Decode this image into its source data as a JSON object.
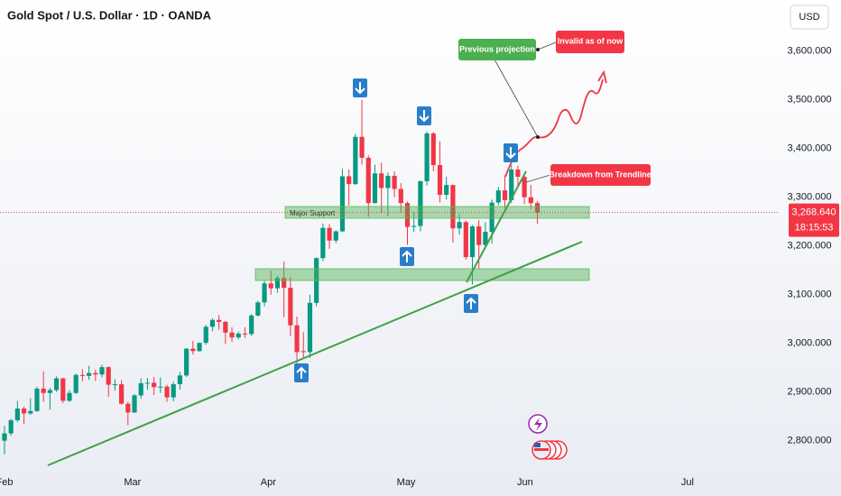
{
  "chart_data": {
    "type": "candlestick",
    "title": "Gold Spot / U.S. Dollar · 1D · OANDA",
    "currency": "USD",
    "x": [
      0,
      1,
      2,
      3,
      4,
      5,
      6,
      7,
      8,
      9,
      10,
      11,
      12,
      13,
      14,
      15,
      16,
      17,
      18,
      19,
      20,
      21,
      22,
      23,
      24,
      25,
      26,
      27,
      28,
      29,
      30,
      31,
      32,
      33,
      34,
      35,
      36,
      37,
      38,
      39,
      40,
      41,
      42,
      43,
      44,
      45,
      46,
      47,
      48,
      49,
      50,
      51,
      52,
      53,
      54,
      55,
      56,
      57,
      58,
      59,
      60,
      61,
      62,
      63,
      64,
      65,
      66,
      67,
      68,
      69,
      70,
      71,
      72,
      73,
      74,
      75,
      76,
      77,
      78,
      79,
      80,
      81,
      82
    ],
    "open": [
      2800,
      2815,
      2842,
      2866,
      2856,
      2861,
      2907,
      2898,
      2904,
      2928,
      2882,
      2898,
      2935,
      2933,
      2939,
      2936,
      2951,
      2915,
      2916,
      2876,
      2858,
      2893,
      2918,
      2919,
      2910,
      2911,
      2889,
      2916,
      2934,
      2989,
      2984,
      3001,
      3034,
      3048,
      3044,
      3022,
      3012,
      3020,
      3019,
      3057,
      3084,
      3123,
      3113,
      3134,
      3114,
      3037,
      2984,
      2982,
      3083,
      3175,
      3237,
      3211,
      3230,
      3343,
      3327,
      3424,
      3381,
      3288,
      3349,
      3319,
      3344,
      3317,
      3288,
      3239,
      3241,
      3333,
      3431,
      3366,
      3305,
      3325,
      3236,
      3249,
      3177,
      3240,
      3202,
      3229,
      3289,
      3314,
      3294,
      3357,
      3342,
      3300,
      3288
    ],
    "high": [
      2830,
      2845,
      2882,
      2870,
      2887,
      2911,
      2942,
      2909,
      2932,
      2929,
      2904,
      2938,
      2947,
      2954,
      2946,
      2956,
      2953,
      2926,
      2924,
      2880,
      2896,
      2928,
      2929,
      2931,
      2930,
      2915,
      2921,
      2941,
      2990,
      3005,
      3002,
      3038,
      3051,
      3058,
      3046,
      3033,
      3024,
      3033,
      3060,
      3087,
      3128,
      3149,
      3139,
      3168,
      3136,
      3055,
      3023,
      3100,
      3176,
      3246,
      3245,
      3232,
      3358,
      3357,
      3430,
      3500,
      3386,
      3367,
      3371,
      3351,
      3353,
      3329,
      3291,
      3269,
      3334,
      3435,
      3434,
      3415,
      3342,
      3326,
      3265,
      3252,
      3243,
      3253,
      3249,
      3295,
      3321,
      3345,
      3366,
      3365,
      3350,
      3325,
      3292
    ],
    "low": [
      2772,
      2810,
      2838,
      2834,
      2853,
      2859,
      2880,
      2864,
      2900,
      2877,
      2880,
      2896,
      2922,
      2925,
      2923,
      2930,
      2890,
      2903,
      2874,
      2832,
      2857,
      2886,
      2905,
      2894,
      2898,
      2880,
      2881,
      2905,
      2931,
      2977,
      2983,
      2997,
      3025,
      3028,
      2999,
      3003,
      3008,
      3011,
      3015,
      3055,
      3076,
      3100,
      3104,
      3054,
      3015,
      2957,
      2971,
      2970,
      3076,
      3169,
      3194,
      3206,
      3228,
      3283,
      3325,
      3367,
      3260,
      3287,
      3268,
      3261,
      3300,
      3268,
      3202,
      3229,
      3230,
      3324,
      3353,
      3289,
      3295,
      3207,
      3223,
      3172,
      3121,
      3154,
      3197,
      3205,
      3284,
      3278,
      3288,
      3324,
      3286,
      3276,
      3245
    ],
    "close": [
      2815,
      2842,
      2866,
      2856,
      2861,
      2907,
      2898,
      2904,
      2928,
      2882,
      2898,
      2935,
      2933,
      2939,
      2936,
      2951,
      2915,
      2916,
      2876,
      2858,
      2893,
      2918,
      2919,
      2910,
      2911,
      2889,
      2916,
      2934,
      2989,
      2984,
      3001,
      3034,
      3048,
      3044,
      3022,
      3012,
      3020,
      3019,
      3057,
      3084,
      3123,
      3113,
      3134,
      3114,
      3037,
      2982,
      2982,
      3083,
      3175,
      3237,
      3211,
      3230,
      3343,
      3327,
      3424,
      3381,
      3288,
      3349,
      3319,
      3344,
      3317,
      3288,
      3239,
      3241,
      3333,
      3431,
      3366,
      3305,
      3325,
      3236,
      3249,
      3177,
      3240,
      3202,
      3229,
      3289,
      3314,
      3294,
      3357,
      3342,
      3300,
      3288,
      3268.64
    ],
    "up_color": "#089981",
    "down_color": "#f23645",
    "xlim": [
      -0.69,
      119
    ],
    "xticks": [
      {
        "value": 0,
        "label": "Feb"
      },
      {
        "value": 19.7,
        "label": "Mar"
      },
      {
        "value": 40.6,
        "label": "Apr"
      },
      {
        "value": 61.8,
        "label": "May"
      },
      {
        "value": 80.1,
        "label": "Jun"
      },
      {
        "value": 105.1,
        "label": "Jul"
      }
    ],
    "ylim": [
      2742,
      3705
    ],
    "yticks": [
      {
        "value": 2800,
        "label": "2,800.000"
      },
      {
        "value": 2900,
        "label": "2,900.000"
      },
      {
        "value": 3000,
        "label": "3,000.000"
      },
      {
        "value": 3100,
        "label": "3,100.000"
      },
      {
        "value": 3200,
        "label": "3,200.000"
      },
      {
        "value": 3300,
        "label": "3,300.000"
      },
      {
        "value": 3400,
        "label": "3,400.000"
      },
      {
        "value": 3500,
        "label": "3,500.000"
      },
      {
        "value": 3600,
        "label": "3,600.000"
      }
    ],
    "last_price": {
      "value": 3268.64,
      "label": "3,268.640"
    },
    "countdown": "18:15:53",
    "annotations": [
      "Major Support",
      "Previous projection",
      "Invalid as of now",
      "Breakdown from Trendline"
    ]
  }
}
